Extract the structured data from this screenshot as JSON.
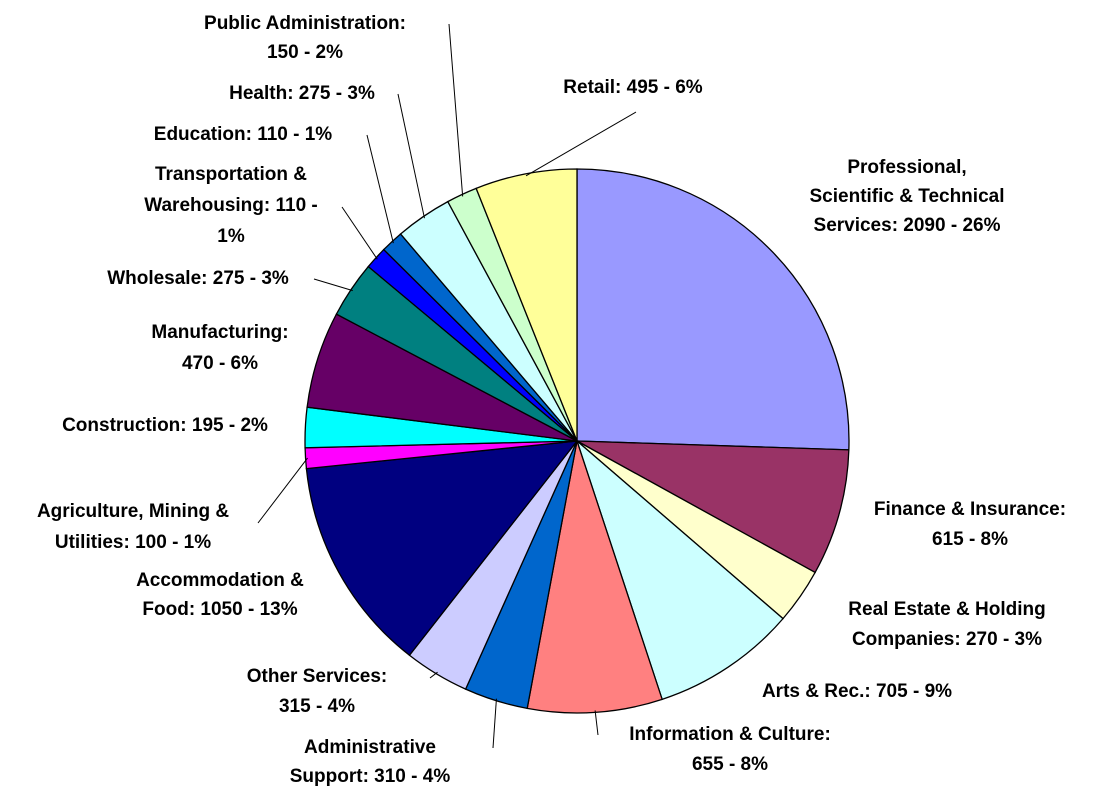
{
  "chart_data": {
    "type": "pie",
    "values": [
      2090,
      615,
      270,
      705,
      655,
      310,
      315,
      1050,
      100,
      195,
      470,
      275,
      110,
      110,
      275,
      150,
      495
    ],
    "value_labels": [
      [
        "Professional,",
        "Scientific & Technical",
        "Services: 2090 - 26%"
      ],
      [
        "Finance & Insurance:",
        "615 - 8%"
      ],
      [
        "Real Estate & Holding",
        "Companies: 270 - 3%"
      ],
      [
        "Arts & Rec.: 705 - 9%"
      ],
      [
        "Information & Culture:",
        "655 - 8%"
      ],
      [
        "Administrative",
        "Support: 310 - 4%"
      ],
      [
        "Other Services:",
        "315 - 4%"
      ],
      [
        "Accommodation &",
        "Food: 1050 - 13%"
      ],
      [
        "Agriculture, Mining &",
        "Utilities: 100 - 1%"
      ],
      [
        "Construction: 195 - 2%"
      ],
      [
        "Manufacturing:",
        "470 - 6%"
      ],
      [
        "Wholesale: 275 - 3%"
      ],
      [
        "Transportation &",
        "Warehousing: 110 -",
        "1%"
      ],
      [
        "Education: 110 - 1%"
      ],
      [
        "Health: 275 - 3%"
      ],
      [
        "Public Administration:",
        "150 - 2%"
      ],
      [
        "Retail: 495 - 6%"
      ]
    ],
    "colors": [
      "#9999ff",
      "#993366",
      "#ffffcc",
      "#ccffff",
      "#ff8080",
      "#0066cc",
      "#ccccff",
      "#000080",
      "#ff00ff",
      "#00ffff",
      "#660066",
      "#008080",
      "#0000ff",
      "#0066cc",
      "#ccffff",
      "#ccffcc",
      "#ffff99"
    ]
  }
}
